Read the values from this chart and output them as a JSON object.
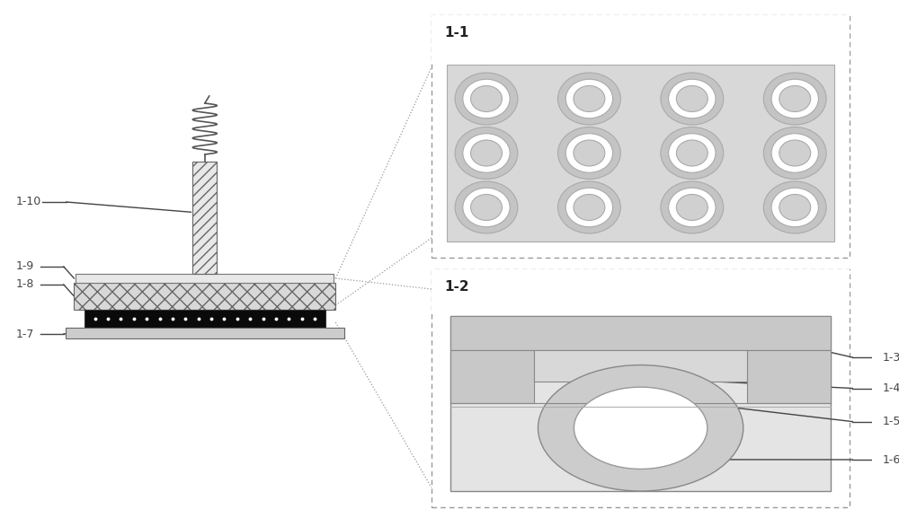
{
  "bg_color": "#ffffff",
  "label_color": "#3a3a3a",
  "box1_label": "1-1",
  "box2_label": "1-2",
  "gray_light": "#e8e8e8",
  "gray_mid": "#cccccc",
  "gray_inner": "#d4d4d4",
  "dotted_box_color": "#888888",
  "black": "#111111",
  "white": "#ffffff",
  "line_color": "#555555",
  "label_line_color": "#444444"
}
